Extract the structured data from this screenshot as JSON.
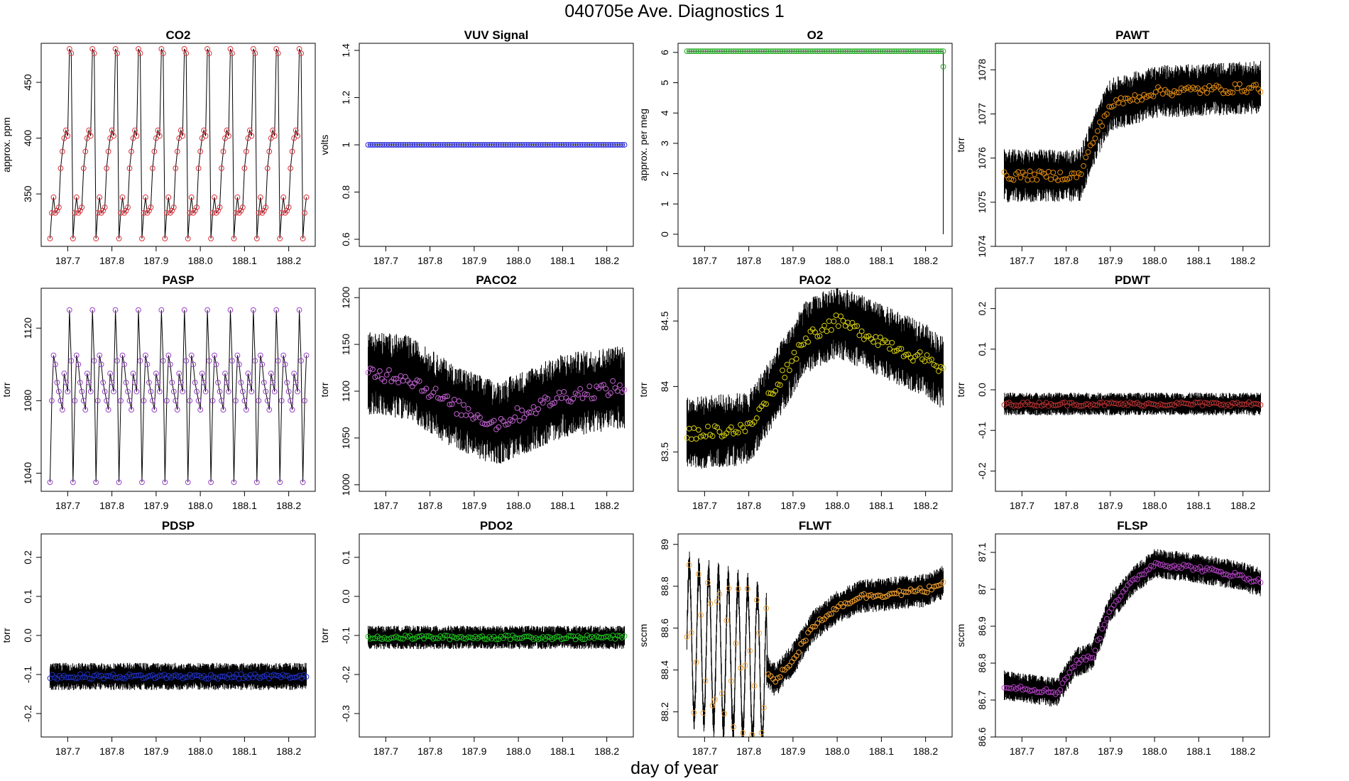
{
  "figure": {
    "title": "040705e   Ave. Diagnostics 1",
    "xlabel": "day of year"
  },
  "colors": {
    "axis": "#000000",
    "line": "#000000"
  },
  "chart_data": [
    {
      "type": "line",
      "title": "CO2",
      "ylabel": "approx. ppm",
      "xlim": [
        187.64,
        188.26
      ],
      "ylim": [
        303,
        485
      ],
      "yticks": [
        350,
        400,
        450
      ],
      "xticks": [
        187.7,
        187.8,
        187.9,
        188.0,
        188.1,
        188.2
      ],
      "point_color": "#e0303a",
      "x_start": 187.66,
      "x_end": 188.24,
      "pattern": "sawtooth",
      "period": 0.052,
      "values": [
        310,
        333,
        347,
        333,
        335,
        338,
        373,
        388,
        400,
        407,
        402,
        480,
        476
      ]
    },
    {
      "type": "line",
      "title": "VUV Signal",
      "ylabel": "volts",
      "xlim": [
        187.64,
        188.26
      ],
      "ylim": [
        0.57,
        1.43
      ],
      "yticks": [
        0.6,
        0.8,
        1.0,
        1.2,
        1.4
      ],
      "xticks": [
        187.7,
        187.8,
        187.9,
        188.0,
        188.1,
        188.2
      ],
      "point_color": "#2222dd",
      "x_start": 187.66,
      "x_end": 188.24,
      "pattern": "constant",
      "level": 1.0,
      "noise": 0
    },
    {
      "type": "line",
      "title": "O2",
      "ylabel": "approx. per meg",
      "xlim": [
        187.64,
        188.26
      ],
      "ylim": [
        -0.4,
        6.3
      ],
      "yticks": [
        0,
        1,
        2,
        3,
        4,
        5,
        6
      ],
      "xticks": [
        187.7,
        187.8,
        187.9,
        188.0,
        188.1,
        188.2
      ],
      "point_color": "#22aa22",
      "x_start": 187.66,
      "x_end": 188.24,
      "pattern": "constant",
      "level": 6.04,
      "noise": 0,
      "end_drop": [
        0,
        5.53
      ]
    },
    {
      "type": "line",
      "title": "PAWT",
      "ylabel": "torr",
      "xlim": [
        187.64,
        188.26
      ],
      "ylim": [
        1074,
        1078.6
      ],
      "yticks": [
        1074,
        1075,
        1076,
        1077,
        1078
      ],
      "xticks": [
        187.7,
        187.8,
        187.9,
        188.0,
        188.1,
        188.2
      ],
      "point_color": "#e08a10",
      "x_start": 187.66,
      "x_end": 188.24,
      "pattern": "steps",
      "steps": [
        [
          187.66,
          1075.6
        ],
        [
          187.83,
          1075.6
        ],
        [
          187.87,
          1076.6
        ],
        [
          187.9,
          1077.2
        ],
        [
          188.0,
          1077.5
        ],
        [
          188.24,
          1077.6
        ]
      ],
      "noise": 0.6
    },
    {
      "type": "line",
      "title": "PASP",
      "ylabel": "torr",
      "xlim": [
        187.64,
        188.26
      ],
      "ylim": [
        1030,
        1142
      ],
      "yticks": [
        1040,
        1080,
        1120
      ],
      "xticks": [
        187.7,
        187.8,
        187.9,
        188.0,
        188.1,
        188.2
      ],
      "point_color": "#9a40cc",
      "x_start": 187.66,
      "x_end": 188.24,
      "pattern": "sawtooth",
      "period": 0.052,
      "values": [
        1035,
        1080,
        1105,
        1100,
        1090,
        1085,
        1080,
        1075,
        1095,
        1090,
        1085,
        1130,
        1102
      ]
    },
    {
      "type": "line",
      "title": "PACO2",
      "ylabel": "torr",
      "xlim": [
        187.64,
        188.26
      ],
      "ylim": [
        993,
        1210
      ],
      "yticks": [
        1000,
        1050,
        1100,
        1150,
        1200
      ],
      "xticks": [
        187.7,
        187.8,
        187.9,
        188.0,
        188.1,
        188.2
      ],
      "point_color": "#c060d0",
      "x_start": 187.66,
      "x_end": 188.24,
      "pattern": "steps",
      "steps": [
        [
          187.66,
          1120
        ],
        [
          187.75,
          1115
        ],
        [
          187.85,
          1085
        ],
        [
          187.95,
          1065
        ],
        [
          188.0,
          1075
        ],
        [
          188.1,
          1095
        ],
        [
          188.24,
          1105
        ]
      ],
      "noise": 45
    },
    {
      "type": "line",
      "title": "PAO2",
      "ylabel": "torr",
      "xlim": [
        187.64,
        188.26
      ],
      "ylim": [
        83.2,
        84.75
      ],
      "yticks": [
        83.5,
        84.0,
        84.5
      ],
      "xticks": [
        187.7,
        187.8,
        187.9,
        188.0,
        188.1,
        188.2
      ],
      "point_color": "#d8d010",
      "x_start": 187.66,
      "x_end": 188.24,
      "pattern": "steps",
      "steps": [
        [
          187.66,
          83.64
        ],
        [
          187.8,
          83.68
        ],
        [
          187.87,
          84.05
        ],
        [
          187.93,
          84.38
        ],
        [
          188.0,
          84.5
        ],
        [
          188.1,
          84.35
        ],
        [
          188.2,
          84.2
        ],
        [
          188.24,
          84.1
        ]
      ],
      "noise": 0.28
    },
    {
      "type": "line",
      "title": "PDWT",
      "ylabel": "torr",
      "xlim": [
        187.64,
        188.26
      ],
      "ylim": [
        -0.25,
        0.25
      ],
      "yticks": [
        -0.2,
        -0.1,
        0.0,
        0.1,
        0.2
      ],
      "xticks": [
        187.7,
        187.8,
        187.9,
        188.0,
        188.1,
        188.2
      ],
      "point_color": "#b03030",
      "x_start": 187.66,
      "x_end": 188.24,
      "pattern": "constant",
      "level": -0.035,
      "noise": 0.028
    },
    {
      "type": "line",
      "title": "PDSP",
      "ylabel": "torr",
      "xlim": [
        187.64,
        188.26
      ],
      "ylim": [
        -0.26,
        0.26
      ],
      "yticks": [
        -0.2,
        -0.1,
        0.0,
        0.1,
        0.2
      ],
      "xticks": [
        187.7,
        187.8,
        187.9,
        188.0,
        188.1,
        188.2
      ],
      "point_color": "#2030c0",
      "x_start": 187.66,
      "x_end": 188.24,
      "pattern": "constant",
      "level": -0.105,
      "noise": 0.035
    },
    {
      "type": "line",
      "title": "PDO2",
      "ylabel": "torr",
      "xlim": [
        187.64,
        188.26
      ],
      "ylim": [
        -0.36,
        0.16
      ],
      "yticks": [
        -0.3,
        -0.2,
        -0.1,
        0.0,
        0.1
      ],
      "xticks": [
        187.7,
        187.8,
        187.9,
        188.0,
        188.1,
        188.2
      ],
      "point_color": "#20c020",
      "x_start": 187.66,
      "x_end": 188.24,
      "pattern": "constant",
      "level": -0.105,
      "noise": 0.03
    },
    {
      "type": "line",
      "title": "FLWT",
      "ylabel": "sccm",
      "xlim": [
        187.64,
        188.26
      ],
      "ylim": [
        88.08,
        89.05
      ],
      "yticks": [
        88.2,
        88.4,
        88.6,
        88.8,
        89.0
      ],
      "xticks": [
        187.7,
        187.8,
        187.9,
        188.0,
        188.1,
        188.2
      ],
      "point_color": "#f0a030",
      "x_start": 187.66,
      "x_end": 188.24,
      "pattern": "steps",
      "steps": [
        [
          187.66,
          88.55
        ],
        [
          187.84,
          88.4
        ],
        [
          187.86,
          88.35
        ],
        [
          187.9,
          88.45
        ],
        [
          187.95,
          88.62
        ],
        [
          188.0,
          88.7
        ],
        [
          188.05,
          88.75
        ],
        [
          188.2,
          88.78
        ],
        [
          188.24,
          88.82
        ]
      ],
      "noise": 0.08,
      "oscillation": {
        "until": 187.84,
        "amplitude": 0.35,
        "period": 0.022
      }
    },
    {
      "type": "line",
      "title": "FLSP",
      "ylabel": "sccm",
      "xlim": [
        187.64,
        188.26
      ],
      "ylim": [
        86.6,
        87.15
      ],
      "yticks": [
        86.6,
        86.7,
        86.8,
        86.9,
        87.0,
        87.1
      ],
      "xticks": [
        187.7,
        187.8,
        187.9,
        188.0,
        188.1,
        188.2
      ],
      "point_color": "#b040c0",
      "x_start": 187.66,
      "x_end": 188.24,
      "pattern": "steps",
      "steps": [
        [
          187.66,
          86.74
        ],
        [
          187.78,
          86.72
        ],
        [
          187.82,
          86.8
        ],
        [
          187.86,
          86.82
        ],
        [
          187.9,
          86.95
        ],
        [
          187.95,
          87.02
        ],
        [
          188.0,
          87.07
        ],
        [
          188.08,
          87.06
        ],
        [
          188.18,
          87.04
        ],
        [
          188.24,
          87.02
        ]
      ],
      "noise": 0.04
    }
  ]
}
